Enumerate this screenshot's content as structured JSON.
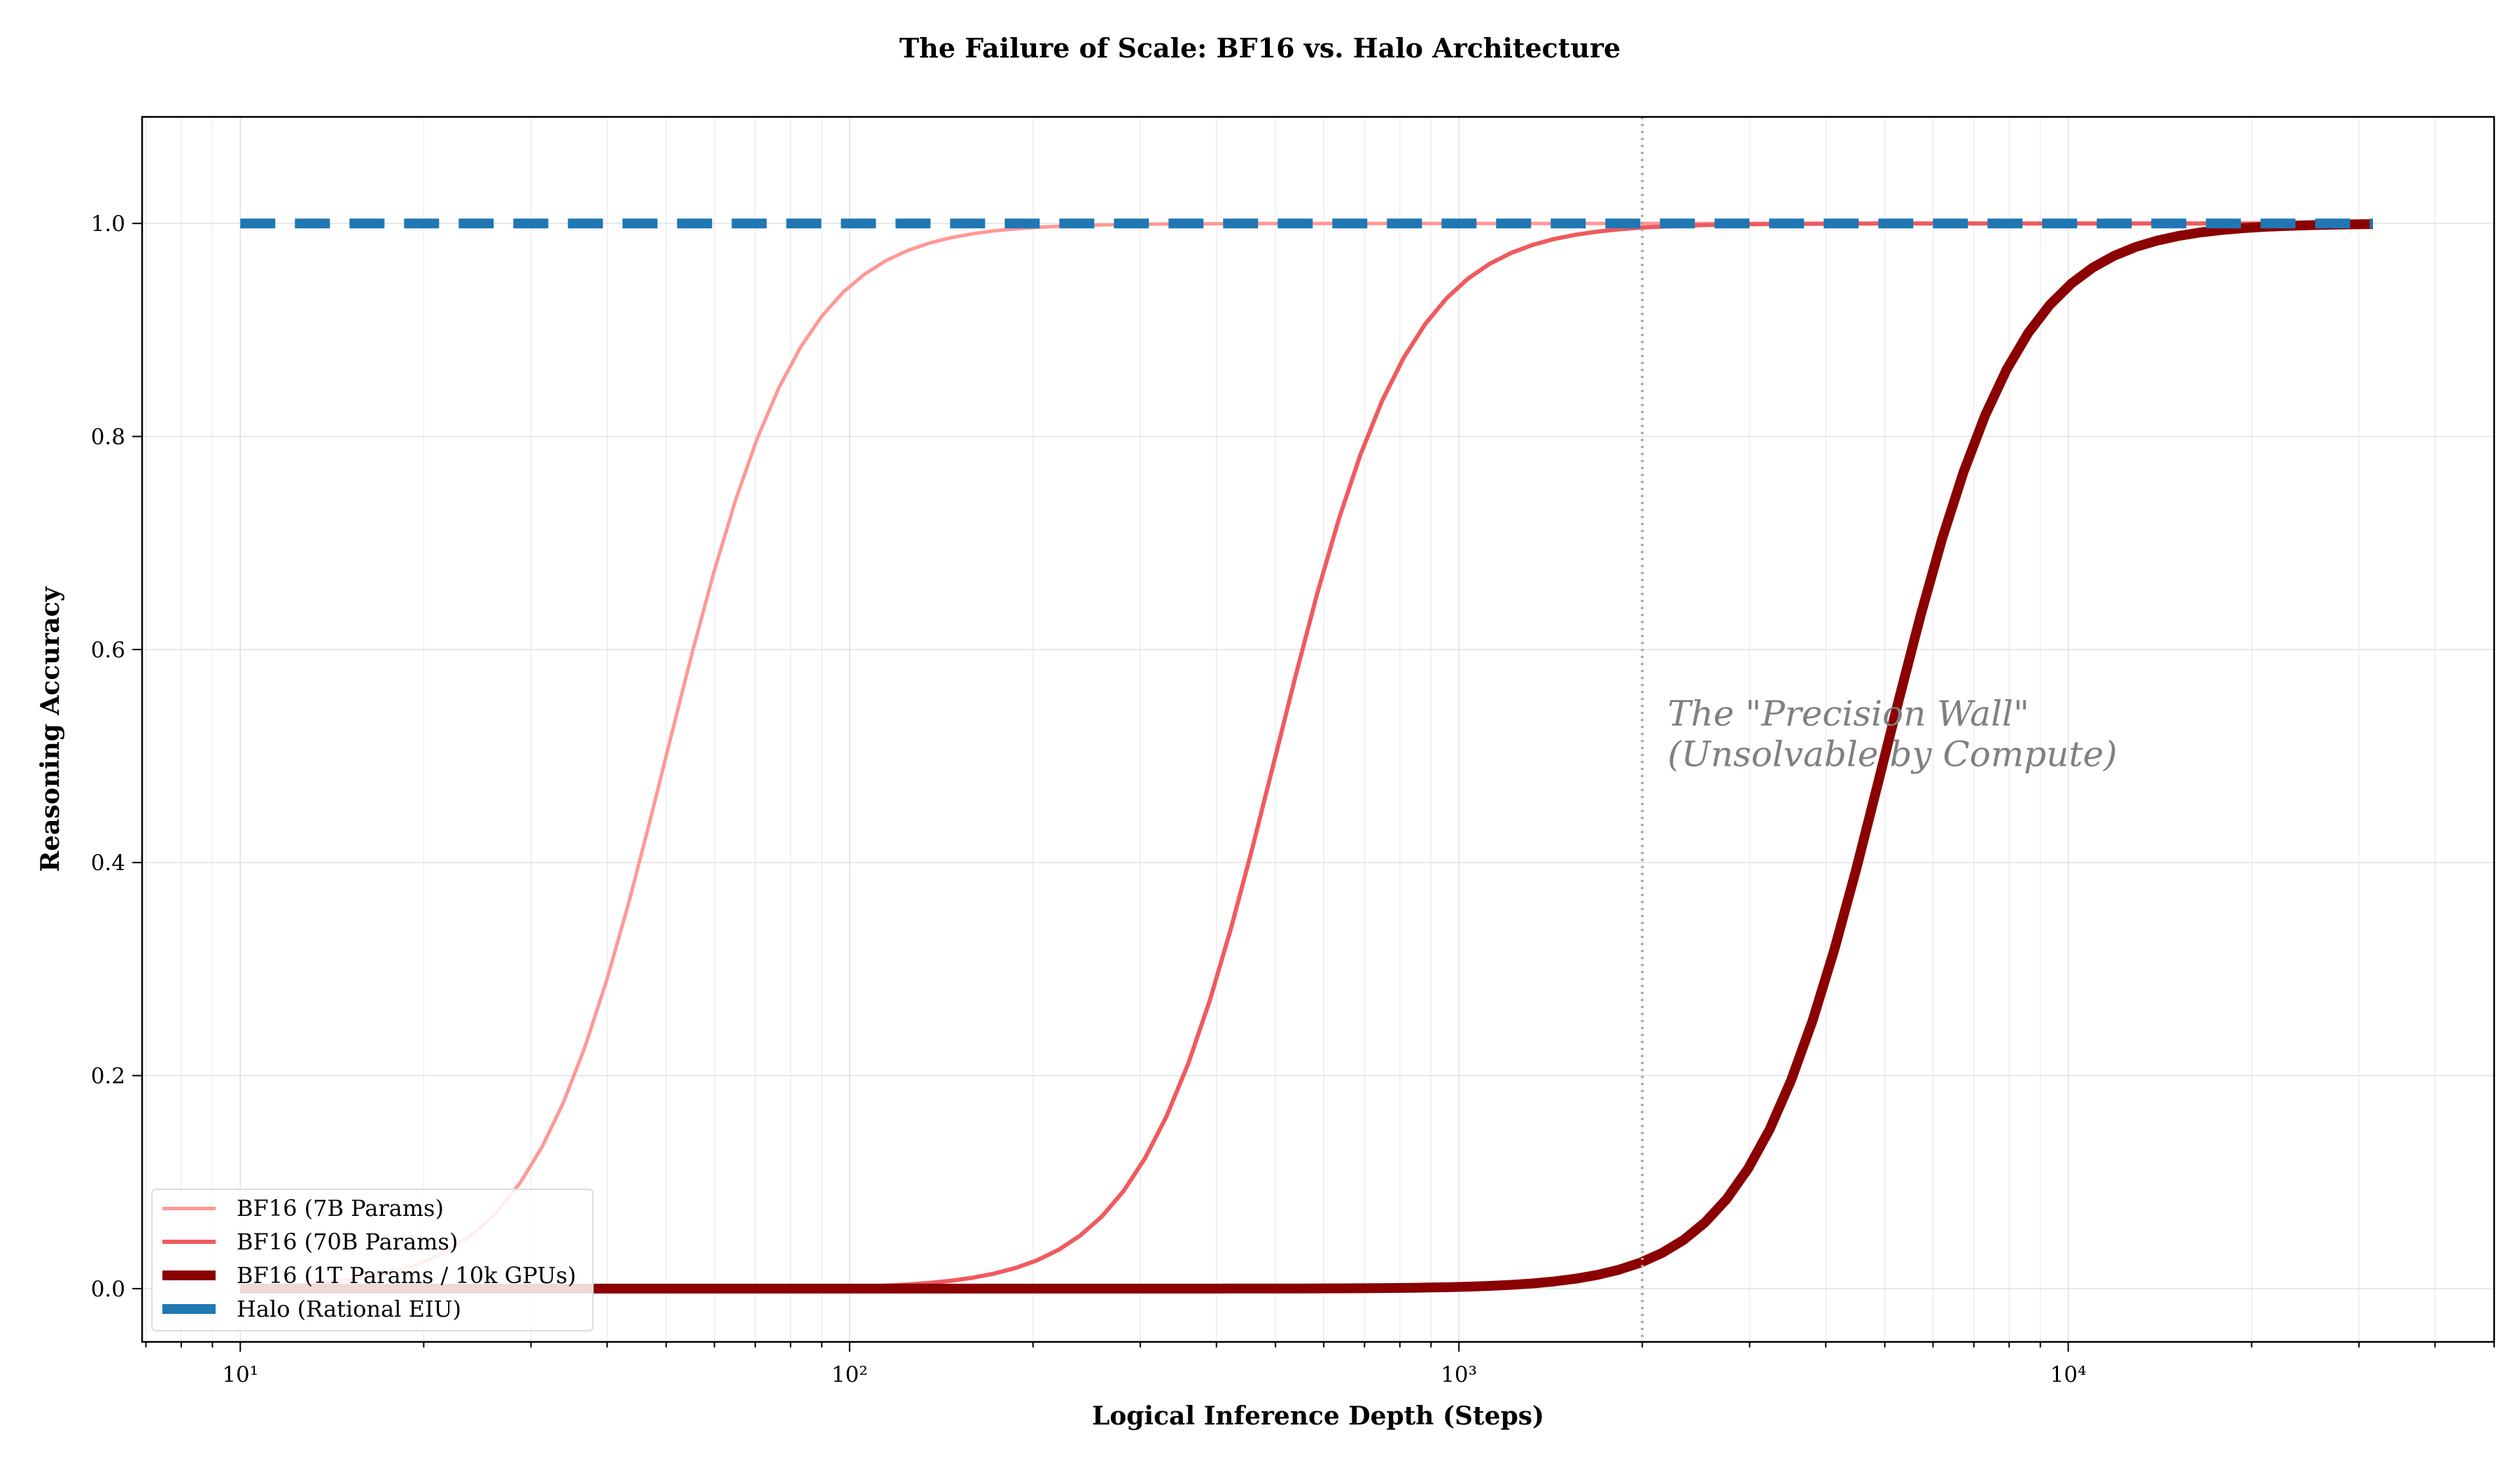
{
  "chart_data": {
    "type": "line",
    "title": "The Failure of Scale: BF16 vs. Halo Architecture",
    "xlabel": "Logical Inference Depth (Steps)",
    "ylabel": "Reasoning Accuracy",
    "xscale": "log",
    "xlim": [
      6.9,
      50000
    ],
    "ylim": [
      -0.05,
      1.1
    ],
    "x_ticks": [
      {
        "value": 10,
        "label": "10¹"
      },
      {
        "value": 100,
        "label": "10²"
      },
      {
        "value": 1000,
        "label": "10³"
      },
      {
        "value": 10000,
        "label": "10⁴"
      }
    ],
    "y_ticks": [
      {
        "value": 0.0,
        "label": "0.0"
      },
      {
        "value": 0.2,
        "label": "0.2"
      },
      {
        "value": 0.4,
        "label": "0.4"
      },
      {
        "value": 0.6,
        "label": "0.6"
      },
      {
        "value": 0.8,
        "label": "0.8"
      },
      {
        "value": 1.0,
        "label": "1.0"
      }
    ],
    "grid": true,
    "legend_position": "lower-left",
    "x_range": [
      10,
      31623
    ],
    "series": [
      {
        "name": "BF16 (7B Params)",
        "color": "#ff9896",
        "style": "solid",
        "width": "thin",
        "midpoint": 50,
        "steepness": 9.2
      },
      {
        "name": "BF16 (70B Params)",
        "color": "#f05a5e",
        "style": "solid",
        "width": "medium",
        "midpoint": 500,
        "steepness": 9.2
      },
      {
        "name": "BF16 (1T Params / 10k GPUs)",
        "color": "#8b0000",
        "style": "solid",
        "width": "thick",
        "midpoint": 5000,
        "steepness": 9.2
      },
      {
        "name": "Halo (Rational EIU)",
        "color": "#1f77b4",
        "style": "dashed",
        "width": "thick",
        "constant": 1.0
      }
    ],
    "annotations": [
      {
        "type": "vline",
        "x": 2000,
        "color": "#aaaaaa",
        "style": "dotted"
      },
      {
        "type": "text",
        "x": 2200,
        "y": 0.545,
        "lines": [
          "The \"Precision Wall\"",
          "(Unsolvable by Compute)"
        ],
        "color": "#808080",
        "style": "italic"
      }
    ]
  }
}
